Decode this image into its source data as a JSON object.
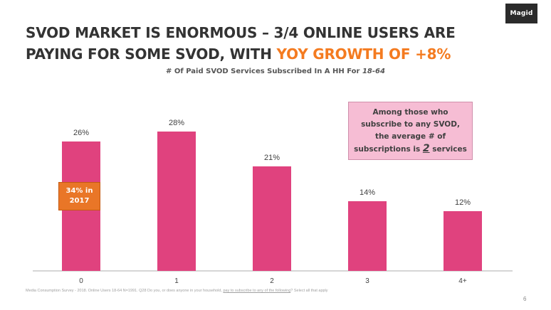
{
  "logo": "Magid",
  "headline": {
    "main": "SVOD MARKET IS ENORMOUS – 3/4 ONLINE USERS ARE PAYING FOR SOME SVOD, WITH ",
    "accent": "YOY GROWTH OF +8%"
  },
  "subtitle": {
    "main": "# Of Paid SVOD Services Subscribed  In A HH For ",
    "italic": "18-64"
  },
  "callout": {
    "line1": "Among those who",
    "line2": "subscribe to any SVOD,",
    "line3": "the average # of",
    "line4_pre": "subscriptions is ",
    "line4_value": "2",
    "line4_post": " services"
  },
  "note_2017": {
    "line1": "34% in",
    "line2": "2017"
  },
  "chart_data": {
    "type": "bar",
    "categories": [
      "0",
      "1",
      "2",
      "3",
      "4+"
    ],
    "values": [
      26,
      28,
      21,
      14,
      12
    ],
    "value_labels": [
      "26%",
      "28%",
      "21%",
      "14%",
      "12%"
    ],
    "ylim": [
      0,
      30
    ],
    "grid": false,
    "bar_color": "#e0427e",
    "axis_color": "#c8c8c8"
  },
  "footnote": {
    "pre": "Media Consumption Survey - 2018. Online Users 18-64 N=1991. Q28 Do you, or does anyone in your household, ",
    "underlined": "pay to subscribe to any of the following",
    "post": "? Select all that apply"
  },
  "page_number": "6"
}
